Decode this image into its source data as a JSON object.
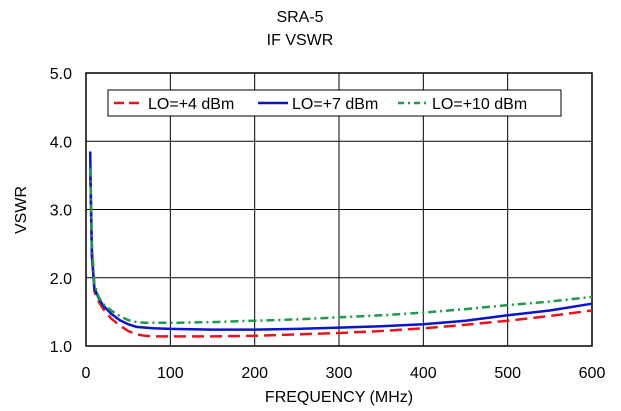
{
  "chart_data": {
    "type": "line",
    "title": "SRA-5",
    "subtitle": "IF VSWR",
    "xlabel": "FREQUENCY (MHz)",
    "ylabel": "VSWR",
    "xlim": [
      0,
      600
    ],
    "ylim": [
      1.0,
      5.0
    ],
    "x_ticks": [
      "0",
      "100",
      "200",
      "300",
      "400",
      "500",
      "600"
    ],
    "y_ticks": [
      "1.0",
      "2.0",
      "3.0",
      "4.0",
      "5.0"
    ],
    "grid": true,
    "legend_position": "top",
    "series": [
      {
        "name": "LO=+4 dBm",
        "color": "#e8141b",
        "style": "dashed",
        "points": [
          [
            5,
            3.5
          ],
          [
            7,
            2.4
          ],
          [
            10,
            1.8
          ],
          [
            15,
            1.65
          ],
          [
            20,
            1.55
          ],
          [
            30,
            1.4
          ],
          [
            40,
            1.3
          ],
          [
            50,
            1.22
          ],
          [
            60,
            1.17
          ],
          [
            70,
            1.15
          ],
          [
            80,
            1.14
          ],
          [
            100,
            1.14
          ],
          [
            150,
            1.14
          ],
          [
            200,
            1.15
          ],
          [
            250,
            1.17
          ],
          [
            300,
            1.19
          ],
          [
            350,
            1.22
          ],
          [
            400,
            1.26
          ],
          [
            450,
            1.31
          ],
          [
            500,
            1.37
          ],
          [
            550,
            1.44
          ],
          [
            600,
            1.52
          ]
        ]
      },
      {
        "name": "LO=+7 dBm",
        "color": "#0a14c8",
        "style": "solid",
        "points": [
          [
            5,
            3.85
          ],
          [
            6,
            3.0
          ],
          [
            7,
            2.3
          ],
          [
            10,
            1.85
          ],
          [
            15,
            1.7
          ],
          [
            20,
            1.6
          ],
          [
            30,
            1.47
          ],
          [
            40,
            1.38
          ],
          [
            50,
            1.32
          ],
          [
            60,
            1.28
          ],
          [
            70,
            1.27
          ],
          [
            80,
            1.26
          ],
          [
            100,
            1.25
          ],
          [
            150,
            1.24
          ],
          [
            200,
            1.24
          ],
          [
            250,
            1.25
          ],
          [
            300,
            1.27
          ],
          [
            350,
            1.29
          ],
          [
            400,
            1.32
          ],
          [
            450,
            1.37
          ],
          [
            500,
            1.45
          ],
          [
            550,
            1.52
          ],
          [
            600,
            1.62
          ]
        ]
      },
      {
        "name": "LO=+10 dBm",
        "color": "#1e9a4a",
        "style": "dashdot",
        "points": [
          [
            5,
            3.6
          ],
          [
            7,
            2.5
          ],
          [
            10,
            1.9
          ],
          [
            15,
            1.72
          ],
          [
            20,
            1.62
          ],
          [
            30,
            1.52
          ],
          [
            40,
            1.44
          ],
          [
            50,
            1.38
          ],
          [
            60,
            1.35
          ],
          [
            70,
            1.34
          ],
          [
            100,
            1.34
          ],
          [
            150,
            1.35
          ],
          [
            200,
            1.37
          ],
          [
            250,
            1.39
          ],
          [
            300,
            1.42
          ],
          [
            350,
            1.45
          ],
          [
            400,
            1.49
          ],
          [
            450,
            1.54
          ],
          [
            500,
            1.6
          ],
          [
            550,
            1.65
          ],
          [
            600,
            1.72
          ]
        ]
      }
    ]
  }
}
